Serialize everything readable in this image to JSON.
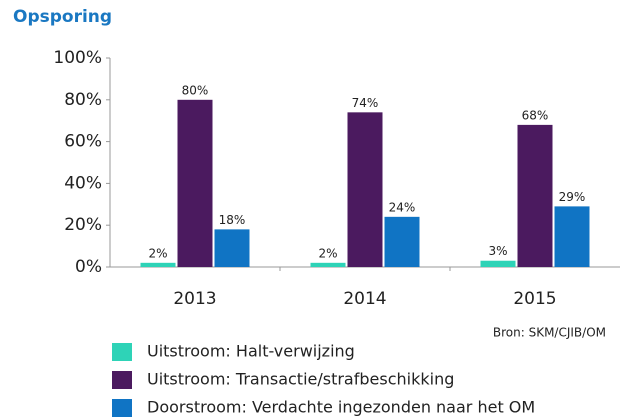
{
  "chart_data": {
    "type": "bar",
    "title": "Opsporing",
    "categories": [
      "2013",
      "2014",
      "2015"
    ],
    "series": [
      {
        "name": "Uitstroom: Halt-verwijzing",
        "color": "#2ed3b7",
        "values": [
          2,
          2,
          3
        ],
        "value_labels": [
          "2%",
          "2%",
          "3%"
        ]
      },
      {
        "name": "Uitstroom: Transactie/strafbeschikking",
        "color": "#4b1a5f",
        "values": [
          80,
          74,
          68
        ],
        "value_labels": [
          "80%",
          "74%",
          "68%"
        ]
      },
      {
        "name": "Doorstroom: Verdachte ingezonden naar het OM",
        "color": "#1074c4",
        "values": [
          18,
          24,
          29
        ],
        "value_labels": [
          "18%",
          "24%",
          "29%"
        ]
      }
    ],
    "ylim": [
      0,
      100
    ],
    "yticks": [
      {
        "value": 0,
        "label": "0%"
      },
      {
        "value": 20,
        "label": "20%"
      },
      {
        "value": 40,
        "label": "40%"
      },
      {
        "value": 60,
        "label": "60%"
      },
      {
        "value": 80,
        "label": "80%"
      },
      {
        "value": 100,
        "label": "100%"
      }
    ],
    "source": "Bron: SKM/CJIB/OM",
    "legend": "bottom"
  }
}
